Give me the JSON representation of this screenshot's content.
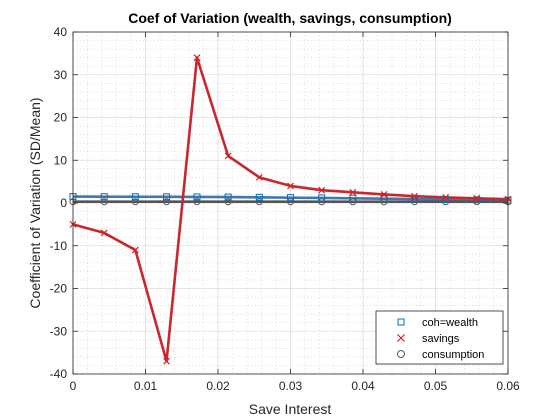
{
  "chart_data": {
    "type": "line",
    "title": "Coef of Variation (wealth, savings, consumption)",
    "xlabel": "Save Interest",
    "ylabel": "Coefficient of Variation (SD/Mean)",
    "xlim": [
      0,
      0.06
    ],
    "ylim": [
      -40,
      40
    ],
    "xticks": [
      0,
      0.01,
      0.02,
      0.03,
      0.04,
      0.05,
      0.06
    ],
    "xtick_labels": [
      "0",
      "0.01",
      "0.02",
      "0.03",
      "0.04",
      "0.05",
      "0.06"
    ],
    "yticks": [
      -40,
      -30,
      -20,
      -10,
      0,
      10,
      20,
      30,
      40
    ],
    "ytick_labels": [
      "-40",
      "-30",
      "-20",
      "-10",
      "0",
      "10",
      "20",
      "30",
      "40"
    ],
    "grid": true,
    "minor_grid": true,
    "legend_position": "bottom-right",
    "x": [
      0,
      0.0043,
      0.0086,
      0.0129,
      0.0171,
      0.0214,
      0.0257,
      0.03,
      0.0343,
      0.0386,
      0.0429,
      0.0471,
      0.0514,
      0.0557,
      0.06
    ],
    "series": [
      {
        "name": "coh=wealth",
        "marker": "square",
        "color": "#0072bd",
        "values": [
          1.5,
          1.48,
          1.46,
          1.44,
          1.42,
          1.38,
          1.32,
          1.25,
          1.18,
          1.1,
          1.0,
          0.92,
          0.83,
          0.74,
          0.65
        ]
      },
      {
        "name": "savings",
        "marker": "x",
        "color": "#d62020",
        "values": [
          -5,
          -7,
          -11,
          -37,
          34,
          11,
          6,
          4,
          3,
          2.5,
          2,
          1.6,
          1.3,
          1.1,
          0.9
        ]
      },
      {
        "name": "consumption",
        "marker": "circle",
        "color": "#5a5a5a",
        "values": [
          0.3,
          0.3,
          0.3,
          0.3,
          0.3,
          0.3,
          0.3,
          0.3,
          0.3,
          0.3,
          0.3,
          0.3,
          0.3,
          0.3,
          0.3
        ]
      }
    ],
    "colors": {
      "coh_wealth": "#0072bd",
      "savings": "#d62020",
      "consumption": "#5a5a5a",
      "savings_line": "#c8282d",
      "coh_line": "#3c78b4",
      "consumption_line": "#555555"
    }
  }
}
